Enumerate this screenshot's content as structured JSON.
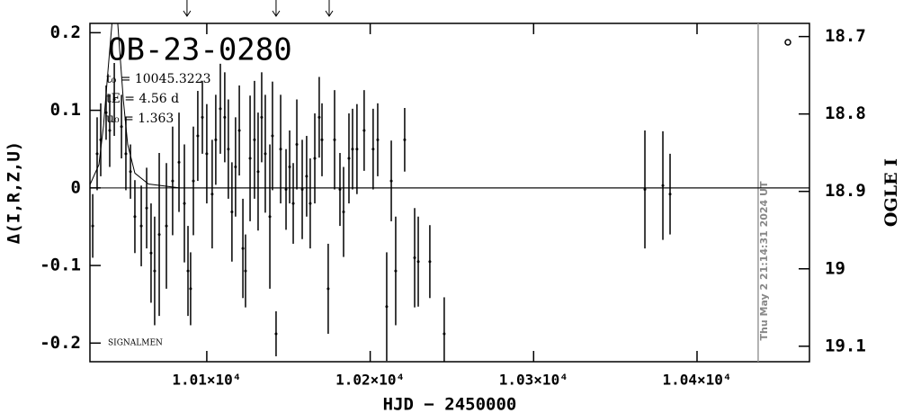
{
  "chart_data": {
    "type": "scatter",
    "title": "OB-23-0280",
    "parameters": [
      "t₀ = 10045.3223",
      "tE = 4.56 d",
      "u₀ = 1.363"
    ],
    "note": "SIGNALMEN",
    "timestamp": "Thu May  2 21:14:31 2024 UT",
    "x_label": "HJD − 2450000",
    "y_label": "Δ(I,R,Z,U)",
    "y2_label": "OGLE I",
    "xlim": [
      10028.5,
      10468.8
    ],
    "ylim": [
      -0.224,
      0.212
    ],
    "y2lim": [
      18.683,
      19.12
    ],
    "xticks": [
      {
        "value": 10100,
        "label": "1.01×10⁴"
      },
      {
        "value": 10200,
        "label": "1.02×10⁴"
      },
      {
        "value": 10300,
        "label": "1.03×10⁴"
      },
      {
        "value": 10400,
        "label": "1.04×10⁴"
      }
    ],
    "yticks": [
      -0.2,
      -0.1,
      0,
      0.1,
      0.2
    ],
    "y2ticks": [
      18.7,
      18.8,
      18.9,
      19,
      19.1
    ],
    "arrows": [
      10087.9,
      10142.4,
      10174.9
    ],
    "now_line": 10437.4,
    "baseline": 0,
    "color": "#000000",
    "model": {
      "x": [
        10028.5,
        10034.0,
        10036.8,
        10039.5,
        10042.3,
        10043.9,
        10046.1,
        10048.9,
        10051.6,
        10056.0,
        10064.3,
        10083.5,
        10468.8
      ],
      "values": [
        0.004,
        0.03,
        0.08,
        0.15,
        0.22,
        0.26,
        0.195,
        0.114,
        0.056,
        0.019,
        0.005,
        0,
        0
      ]
    },
    "points": {
      "x": [
        10030.2,
        10032.9,
        10035.1,
        10038.4,
        10040.6,
        10043.4,
        10047.8,
        10050.5,
        10053.3,
        10056.0,
        10059.9,
        10063.2,
        10065.9,
        10068.1,
        10070.9,
        10075.3,
        10079.1,
        10083.0,
        10086.3,
        10088.5,
        10090.1,
        10091.8,
        10094.5,
        10097.3,
        10100.0,
        10103.3,
        10105.5,
        10108.3,
        10111.0,
        10113.2,
        10115.4,
        10117.6,
        10119.9,
        10122.1,
        10123.7,
        10126.5,
        10129.2,
        10131.4,
        10133.6,
        10135.8,
        10138.6,
        10140.2,
        10142.4,
        10145.2,
        10148.5,
        10150.7,
        10152.9,
        10155.1,
        10158.4,
        10161.1,
        10163.3,
        10166.1,
        10168.8,
        10170.5,
        10174.3,
        10178.2,
        10181.5,
        10183.7,
        10187.0,
        10189.2,
        10191.9,
        10196.3,
        10201.8,
        10204.6,
        10210.1,
        10212.9,
        10215.6,
        10221.1,
        10227.2,
        10229.4,
        10236.5,
        10245.3,
        10368.1,
        10379.1,
        10383.5
      ],
      "values": [
        -0.049,
        0.044,
        0.062,
        0.097,
        0.074,
        0.114,
        0.079,
        0.044,
        0.021,
        -0.037,
        -0.049,
        -0.026,
        -0.084,
        -0.107,
        -0.06,
        -0.049,
        0.009,
        0.033,
        -0.02,
        -0.107,
        -0.13,
        0.009,
        0.067,
        0.091,
        0.044,
        -0.008,
        0.062,
        0.102,
        0.091,
        0.05,
        -0.031,
        0.027,
        0.074,
        -0.078,
        -0.107,
        0.038,
        0.062,
        0.021,
        0.091,
        0.044,
        -0.037,
        0.067,
        -0.188,
        0.05,
        -0.002,
        0.027,
        -0.02,
        0.056,
        -0.002,
        0.015,
        -0.02,
        0.038,
        0.091,
        0.062,
        -0.13,
        0.062,
        -0.002,
        -0.031,
        0.038,
        0.05,
        0.05,
        0.074,
        0.05,
        0.062,
        -0.153,
        0.009,
        -0.107,
        0.062,
        -0.09,
        -0.095,
        -0.095,
        -0.188,
        -0.002,
        0.003,
        -0.008
      ],
      "errors": [
        0.041,
        0.047,
        0.047,
        0.035,
        0.047,
        0.047,
        0.041,
        0.047,
        0.035,
        0.047,
        0.052,
        0.052,
        0.064,
        0.07,
        0.105,
        0.081,
        0.07,
        0.064,
        0.076,
        0.058,
        0.047,
        0.07,
        0.058,
        0.047,
        0.064,
        0.07,
        0.058,
        0.058,
        0.058,
        0.064,
        0.064,
        0.064,
        0.058,
        0.064,
        0.047,
        0.081,
        0.076,
        0.076,
        0.058,
        0.076,
        0.093,
        0.07,
        0.029,
        0.07,
        0.052,
        0.047,
        0.052,
        0.058,
        0.064,
        0.052,
        0.058,
        0.058,
        0.052,
        0.047,
        0.058,
        0.064,
        0.047,
        0.058,
        0.058,
        0.052,
        0.058,
        0.052,
        0.052,
        0.047,
        0.07,
        0.052,
        0.07,
        0.041,
        0.064,
        0.058,
        0.047,
        0.047,
        0.076,
        0.07,
        0.052
      ]
    }
  }
}
